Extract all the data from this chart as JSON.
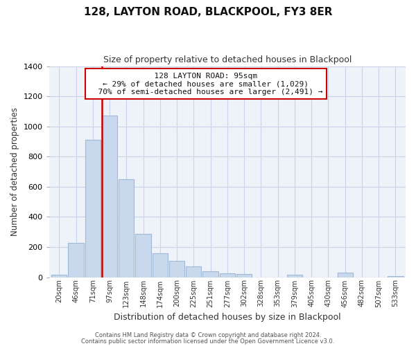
{
  "title": "128, LAYTON ROAD, BLACKPOOL, FY3 8ER",
  "subtitle": "Size of property relative to detached houses in Blackpool",
  "xlabel": "Distribution of detached houses by size in Blackpool",
  "ylabel": "Number of detached properties",
  "bar_labels": [
    "20sqm",
    "46sqm",
    "71sqm",
    "97sqm",
    "123sqm",
    "148sqm",
    "174sqm",
    "200sqm",
    "225sqm",
    "251sqm",
    "277sqm",
    "302sqm",
    "328sqm",
    "353sqm",
    "379sqm",
    "405sqm",
    "430sqm",
    "456sqm",
    "482sqm",
    "507sqm",
    "533sqm"
  ],
  "bar_values": [
    15,
    228,
    910,
    1070,
    648,
    285,
    158,
    107,
    70,
    40,
    25,
    20,
    0,
    0,
    18,
    0,
    0,
    30,
    0,
    0,
    5
  ],
  "bar_color": "#c9d9ed",
  "bar_edge_color": "#a0b8d8",
  "vline_color": "#cc0000",
  "property_size": "95sqm",
  "property_name": "128 LAYTON ROAD",
  "pct_smaller": "29%",
  "n_smaller": "1,029",
  "pct_larger": "70%",
  "n_larger": "2,491",
  "ylim": [
    0,
    1400
  ],
  "yticks": [
    0,
    200,
    400,
    600,
    800,
    1000,
    1200,
    1400
  ],
  "footer1": "Contains HM Land Registry data © Crown copyright and database right 2024.",
  "footer2": "Contains public sector information licensed under the Open Government Licence v3.0.",
  "bg_color": "#ffffff",
  "grid_color": "#c8d4e8",
  "vline_bar_index": 3
}
